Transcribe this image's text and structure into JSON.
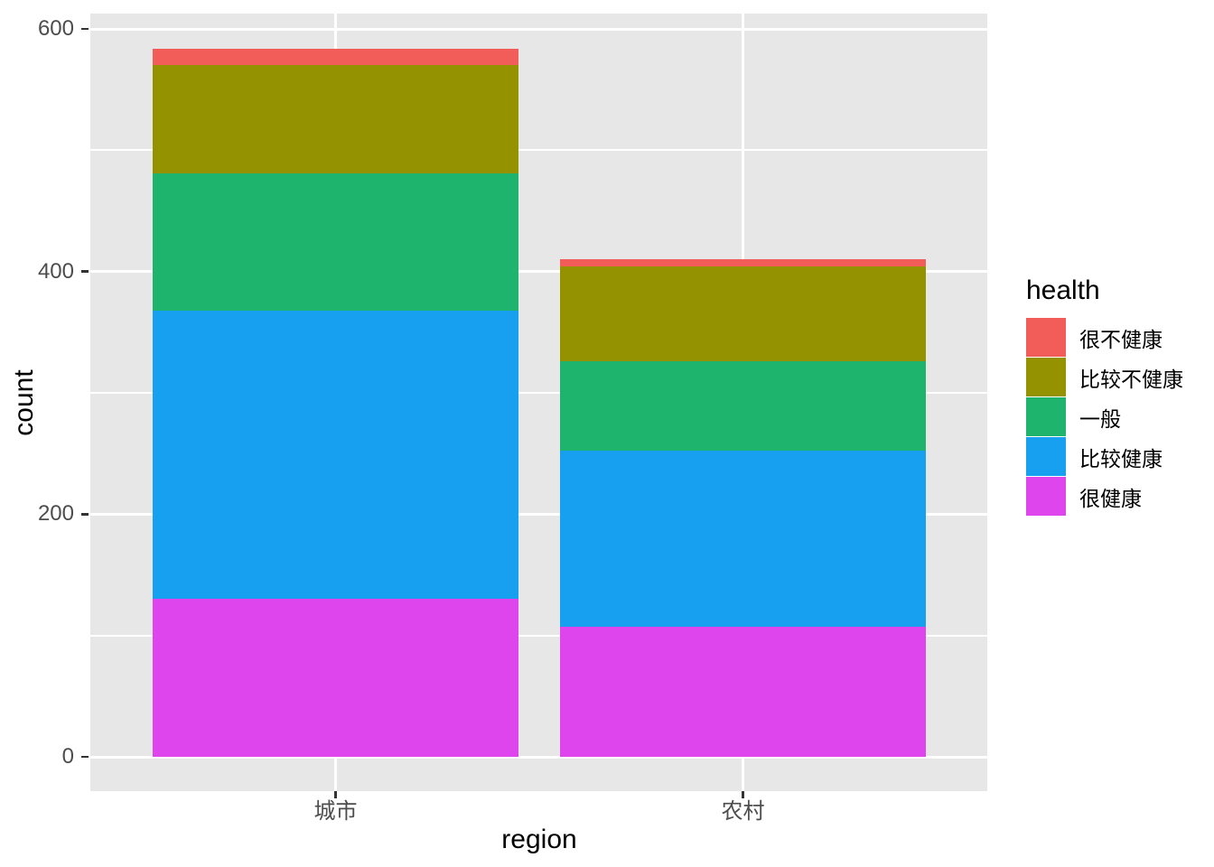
{
  "figure": {
    "background": "#ffffff",
    "panel_background": "#e7e7e7",
    "grid_color": "#ffffff",
    "tick_mark_color": "#333333",
    "axis_text_color": "#4d4d4d",
    "axis_title_color": "#000000"
  },
  "chart_data": {
    "type": "bar",
    "stacked": true,
    "orientation": "vertical",
    "title": "",
    "xlabel": "region",
    "ylabel": "count",
    "categories": [
      "城市",
      "农村"
    ],
    "y_tick_labels": [
      "0",
      "200",
      "400",
      "600"
    ],
    "yticks_major": [
      0,
      200,
      400,
      600
    ],
    "yticks_minor": [
      100,
      300,
      500
    ],
    "ylim": [
      -29,
      613
    ],
    "grid": "white major and minor horizontal lines, white vertical lines at category centers, on grey panel",
    "legend_position": "right",
    "legend_title": "health",
    "series": [
      {
        "name": "很不健康",
        "color": "#F25D5A",
        "values": [
          14,
          6
        ]
      },
      {
        "name": "比较不健康",
        "color": "#959200",
        "values": [
          89,
          78
        ]
      },
      {
        "name": "一般",
        "color": "#1EB46D",
        "values": [
          113,
          74
        ]
      },
      {
        "name": "比较健康",
        "color": "#16A0EF",
        "values": [
          238,
          145
        ]
      },
      {
        "name": "很健康",
        "color": "#DE45EC",
        "values": [
          130,
          107
        ]
      }
    ],
    "stack_order_bottom_to_top": [
      "很健康",
      "比较健康",
      "一般",
      "比较不健康",
      "很不健康"
    ],
    "totals": [
      584,
      410
    ]
  }
}
